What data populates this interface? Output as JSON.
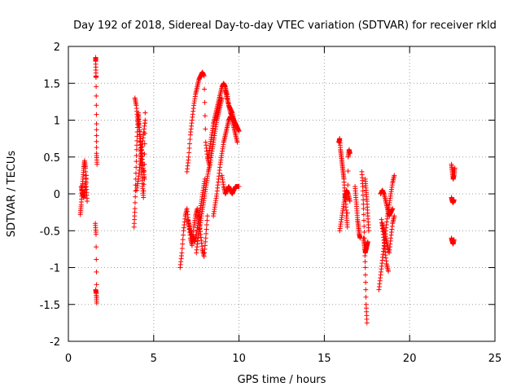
{
  "chart_data": {
    "type": "scatter",
    "title": "Day 192 of 2018, Sidereal Day-to-day VTEC variation (SDTVAR) for receiver rkld",
    "xlabel": "GPS time / hours",
    "ylabel": "SDTVAR / TECUs",
    "xlim": [
      0,
      25
    ],
    "ylim": [
      -2,
      2
    ],
    "xticks": [
      0,
      5,
      10,
      15,
      20,
      25
    ],
    "yticks": [
      -2,
      -1.5,
      -1,
      -0.5,
      0,
      0.5,
      1,
      1.5,
      2
    ],
    "xtick_labels": [
      "0",
      "5",
      "10",
      "15",
      "20",
      "25"
    ],
    "ytick_labels": [
      "-2",
      "-1.5",
      "-1",
      "-0.5",
      "0",
      "0.5",
      "1",
      "1.5",
      "2"
    ],
    "grid": true,
    "marker": "+",
    "marker_color": "#ff0000",
    "series": [
      {
        "name": "SDTVAR",
        "segments": [
          {
            "x": [
              0.7,
              0.75,
              0.8,
              0.85,
              0.9,
              0.95,
              1.0,
              1.05,
              1.1
            ],
            "y": [
              -0.28,
              -0.15,
              0.05,
              0.2,
              0.35,
              0.45,
              0.35,
              0.1,
              -0.1
            ]
          },
          {
            "x": [
              0.75,
              0.82,
              0.9,
              0.98,
              1.05
            ],
            "y": [
              0.1,
              0.0,
              -0.05,
              0.05,
              0.25
            ]
          },
          {
            "x": [
              1.6,
              1.6,
              1.62,
              1.62,
              1.65,
              1.65,
              1.68
            ],
            "y": [
              1.85,
              1.8,
              1.6,
              1.58,
              0.95,
              0.55,
              0.4
            ]
          },
          {
            "x": [
              1.58,
              1.62,
              1.66
            ],
            "y": [
              -0.4,
              -0.55,
              -1.4
            ]
          },
          {
            "x": [
              1.6,
              1.63,
              1.66
            ],
            "y": [
              -1.3,
              -1.35,
              -1.48
            ]
          },
          {
            "x": [
              3.85,
              3.9,
              3.95,
              4.0,
              4.05,
              4.1,
              4.15,
              4.2,
              4.25,
              4.3,
              4.35,
              4.4,
              4.45,
              4.5
            ],
            "y": [
              -0.45,
              -0.2,
              0.2,
              0.6,
              0.9,
              1.1,
              0.95,
              0.7,
              0.5,
              0.3,
              0.1,
              -0.05,
              0.4,
              1.1
            ]
          },
          {
            "x": [
              3.9,
              3.98,
              4.06,
              4.14,
              4.22,
              4.3,
              4.38,
              4.46
            ],
            "y": [
              1.3,
              1.2,
              1.0,
              0.9,
              0.75,
              0.55,
              0.35,
              0.2
            ]
          },
          {
            "x": [
              4.0,
              4.1,
              4.2,
              4.3,
              4.4,
              4.5
            ],
            "y": [
              0.05,
              0.2,
              0.4,
              0.6,
              0.8,
              1.0
            ]
          },
          {
            "x": [
              6.55,
              6.65,
              6.75,
              6.85,
              6.95,
              7.05,
              7.15,
              7.25,
              7.35,
              7.45,
              7.55,
              7.65,
              7.75,
              7.85,
              7.95,
              8.05,
              8.15
            ],
            "y": [
              -1.0,
              -0.8,
              -0.5,
              -0.3,
              -0.2,
              -0.4,
              -0.6,
              -0.7,
              -0.45,
              -0.3,
              -0.2,
              -0.35,
              -0.55,
              -0.75,
              -0.85,
              -0.6,
              -0.3
            ]
          },
          {
            "x": [
              6.95,
              7.05,
              7.15,
              7.25,
              7.35,
              7.45,
              7.55,
              7.65,
              7.75,
              7.85,
              7.95,
              8.05,
              8.15,
              8.25
            ],
            "y": [
              0.3,
              0.5,
              0.8,
              1.0,
              1.2,
              1.35,
              1.45,
              1.55,
              1.6,
              1.65,
              1.6,
              0.7,
              0.5,
              0.4
            ]
          },
          {
            "x": [
              7.0,
              7.1,
              7.2,
              7.3,
              7.4,
              7.5,
              7.6,
              7.7,
              7.8,
              7.9,
              8.0
            ],
            "y": [
              -0.35,
              -0.45,
              -0.55,
              -0.6,
              -0.65,
              -0.55,
              -0.4,
              -0.25,
              -0.1,
              0.05,
              0.2
            ]
          },
          {
            "x": [
              7.5,
              7.6,
              7.7,
              7.8,
              7.9,
              8.0,
              8.1,
              8.2,
              8.3,
              8.4,
              8.5,
              8.6,
              8.7,
              8.8,
              8.9,
              9.0
            ],
            "y": [
              -0.8,
              -0.6,
              -0.45,
              -0.3,
              -0.15,
              0.0,
              0.15,
              0.3,
              0.4,
              0.55,
              0.7,
              0.85,
              1.0,
              1.1,
              1.2,
              1.3
            ]
          },
          {
            "x": [
              8.2,
              8.3,
              8.4,
              8.5,
              8.6,
              8.7,
              8.8,
              8.9,
              9.0,
              9.1,
              9.2,
              9.3,
              9.4,
              9.5,
              9.6,
              9.7
            ],
            "y": [
              0.5,
              0.65,
              0.8,
              0.95,
              1.05,
              1.15,
              1.25,
              1.35,
              1.45,
              1.5,
              1.45,
              1.35,
              1.2,
              1.1,
              1.05,
              1.0
            ]
          },
          {
            "x": [
              8.5,
              8.6,
              8.7,
              8.8,
              8.9,
              9.0,
              9.1,
              9.2,
              9.3,
              9.4,
              9.5,
              9.6,
              9.7,
              9.8,
              9.9
            ],
            "y": [
              -0.3,
              -0.15,
              0.0,
              0.2,
              0.4,
              0.55,
              0.7,
              0.8,
              0.9,
              1.0,
              1.05,
              1.0,
              0.9,
              0.8,
              0.7
            ]
          },
          {
            "x": [
              9.0,
              9.1,
              9.2,
              9.3,
              9.4,
              9.5,
              9.6,
              9.7,
              9.8,
              9.9,
              10.0
            ],
            "y": [
              0.25,
              0.1,
              0.0,
              0.05,
              0.1,
              0.05,
              0.0,
              0.05,
              0.1,
              0.1,
              0.1
            ]
          },
          {
            "x": [
              9.2,
              9.3,
              9.4,
              9.5,
              9.6,
              9.7,
              9.8,
              9.9,
              10.0
            ],
            "y": [
              1.4,
              1.3,
              1.2,
              1.15,
              1.1,
              1.0,
              0.95,
              0.9,
              0.85
            ]
          },
          {
            "x": [
              15.85,
              15.9,
              15.95,
              16.0,
              16.05,
              16.1,
              16.15,
              16.2,
              16.25,
              16.3,
              16.35,
              16.4,
              16.45,
              16.5
            ],
            "y": [
              0.7,
              0.75,
              0.6,
              0.5,
              0.4,
              0.3,
              0.2,
              0.0,
              -0.1,
              -0.3,
              -0.45,
              0.5,
              0.6,
              0.55
            ]
          },
          {
            "x": [
              15.9,
              16.0,
              16.1,
              16.2,
              16.3,
              16.4,
              16.5
            ],
            "y": [
              -0.5,
              -0.35,
              -0.2,
              -0.05,
              0.05,
              0.0,
              -0.1
            ]
          },
          {
            "x": [
              16.8,
              16.85,
              16.9,
              16.95,
              17.0,
              17.05,
              17.1
            ],
            "y": [
              0.1,
              -0.05,
              -0.2,
              -0.35,
              -0.45,
              -0.55,
              -0.6
            ]
          },
          {
            "x": [
              17.2,
              17.25,
              17.3,
              17.35,
              17.4,
              17.45,
              17.5
            ],
            "y": [
              0.3,
              0.1,
              -0.2,
              -0.6,
              -1.0,
              -1.5,
              -1.75
            ]
          },
          {
            "x": [
              17.3,
              17.35,
              17.4,
              17.45,
              17.5,
              17.55
            ],
            "y": [
              -0.6,
              -0.7,
              -0.8,
              -0.75,
              -0.7,
              -0.65
            ]
          },
          {
            "x": [
              17.4,
              17.45,
              17.5,
              17.55,
              17.6
            ],
            "y": [
              0.2,
              0.05,
              -0.1,
              -0.3,
              -0.5
            ]
          },
          {
            "x": [
              18.2,
              18.3,
              18.4,
              18.5,
              18.6,
              18.7,
              18.8,
              18.9,
              19.0,
              19.1
            ],
            "y": [
              -1.3,
              -1.1,
              -0.9,
              -0.7,
              -0.5,
              -0.3,
              -0.15,
              0.0,
              0.15,
              0.25
            ]
          },
          {
            "x": [
              18.3,
              18.4,
              18.5,
              18.6,
              18.7,
              18.8,
              18.9,
              19.0
            ],
            "y": [
              0.0,
              0.05,
              0.0,
              -0.1,
              -0.2,
              -0.3,
              -0.25,
              -0.2
            ]
          },
          {
            "x": [
              18.35,
              18.45,
              18.55,
              18.65,
              18.75
            ],
            "y": [
              -0.35,
              -0.55,
              -0.75,
              -0.95,
              -1.05
            ]
          },
          {
            "x": [
              18.4,
              18.5,
              18.6,
              18.7,
              18.8,
              18.9,
              19.0,
              19.1
            ],
            "y": [
              -0.4,
              -0.5,
              -0.6,
              -0.7,
              -0.8,
              -0.6,
              -0.4,
              -0.3
            ]
          },
          {
            "x": [
              22.45,
              22.5,
              22.55,
              22.6,
              22.65
            ],
            "y": [
              0.4,
              0.3,
              0.2,
              0.25,
              0.35
            ]
          },
          {
            "x": [
              22.45,
              22.5,
              22.55,
              22.6
            ],
            "y": [
              -0.05,
              -0.1,
              -0.12,
              -0.08
            ]
          },
          {
            "x": [
              22.45,
              22.5,
              22.55,
              22.6
            ],
            "y": [
              -0.6,
              -0.65,
              -0.68,
              -0.62
            ]
          }
        ]
      }
    ]
  }
}
